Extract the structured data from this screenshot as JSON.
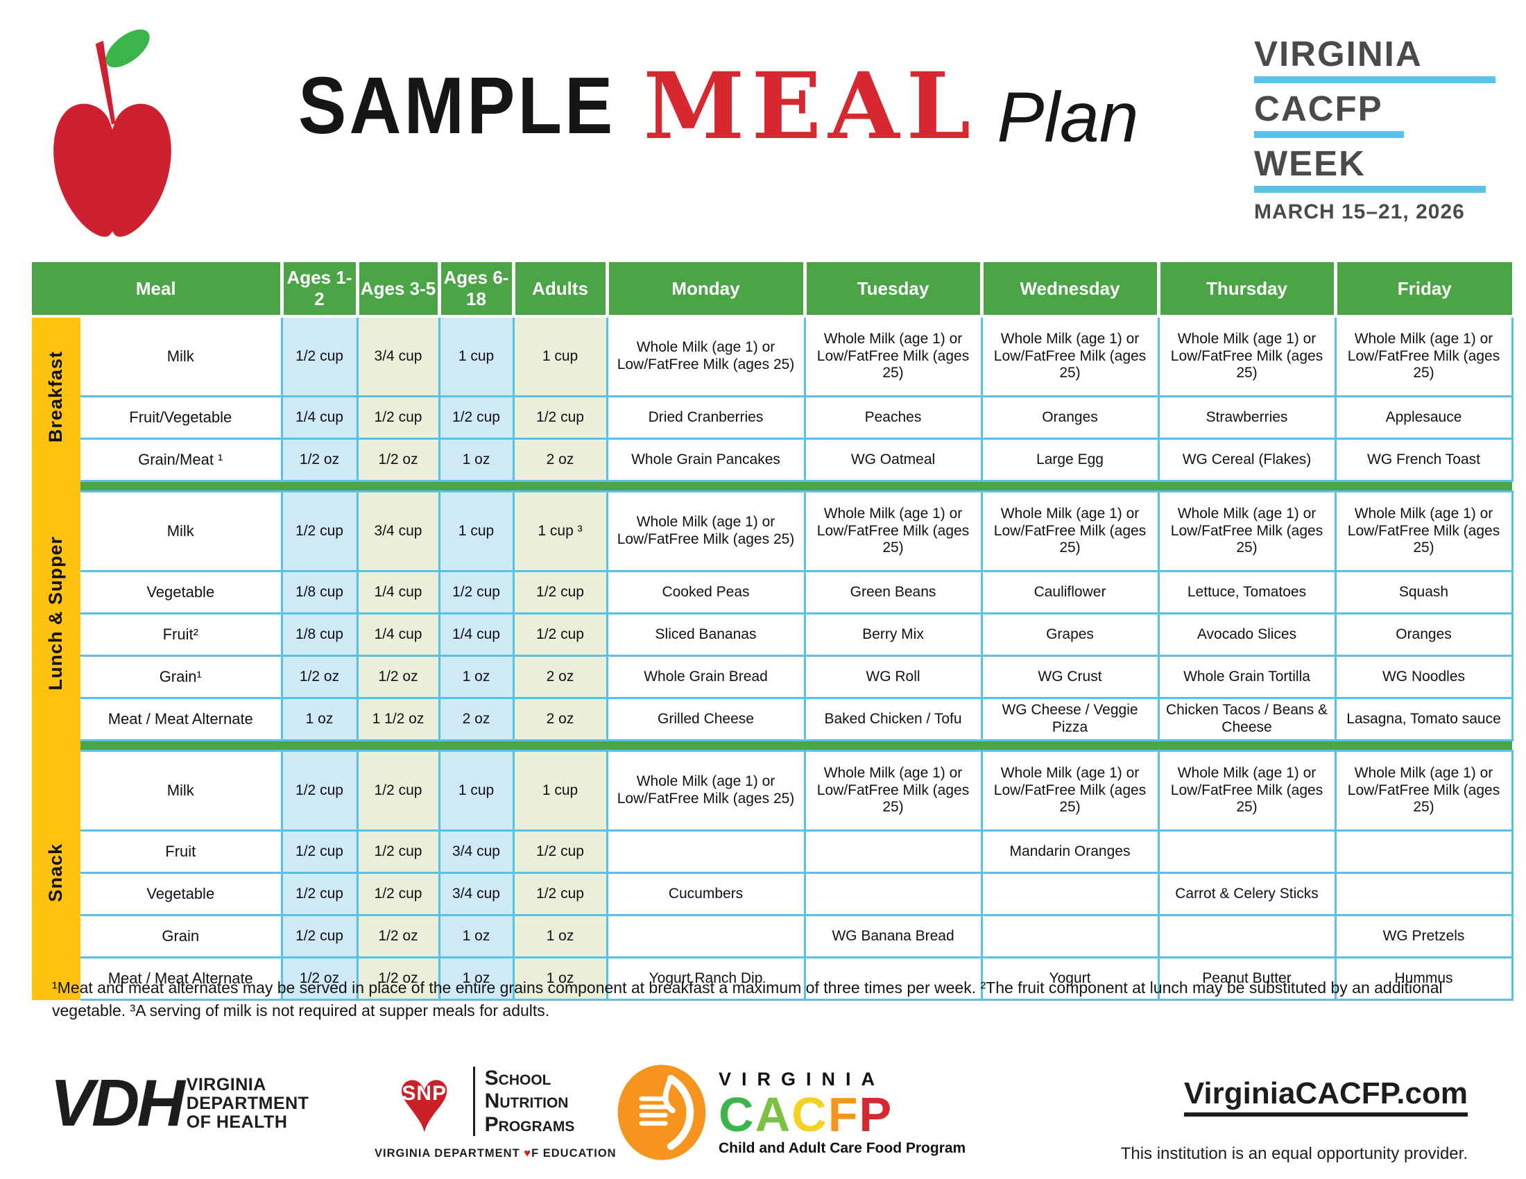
{
  "masthead": {
    "sample": "SAMPLE",
    "meal": "MEAL",
    "plan": "Plan",
    "week_logo": {
      "l1": "VIRGINIA",
      "l2": "CACFP",
      "l3": "WEEK",
      "date": "MARCH 15–21, 2026"
    }
  },
  "colors": {
    "header_green": "#4ba546",
    "stripe_yellow": "#ffc20e",
    "cell_blue": "#cfe9f6",
    "cell_green": "#e9efd8",
    "border_cyan": "#57c1e8",
    "accent_red": "#d7282f",
    "logo_gray": "#4a4a4c",
    "logo_light_blue": "#5bc3e9"
  },
  "table": {
    "columns": [
      "Meal",
      "Ages 1-2",
      "Ages 3-5",
      "Ages 6-18",
      "Adults",
      "Monday",
      "Tuesday",
      "Wednesday",
      "Thursday",
      "Friday"
    ],
    "sections": [
      {
        "label": "Breakfast",
        "rows": [
          {
            "meal": "Milk",
            "amounts": [
              "1/2 cup",
              "3/4 cup",
              "1 cup",
              "1 cup"
            ],
            "days": [
              "Whole Milk (age 1) or Low/FatFree Milk (ages 25)",
              "Whole Milk (age 1) or Low/FatFree Milk (ages 25)",
              "Whole Milk (age 1) or Low/FatFree Milk (ages 25)",
              "Whole Milk (age 1) or Low/FatFree Milk (ages 25)",
              "Whole Milk (age 1) or Low/FatFree Milk (ages 25)"
            ]
          },
          {
            "meal": "Fruit/Vegetable",
            "amounts": [
              "1/4 cup",
              "1/2 cup",
              "1/2 cup",
              "1/2 cup"
            ],
            "days": [
              "Dried Cranberries",
              "Peaches",
              "Oranges",
              "Strawberries",
              "Applesauce"
            ]
          },
          {
            "meal": "Grain/Meat ¹",
            "amounts": [
              "1/2 oz",
              "1/2 oz",
              "1 oz",
              "2 oz"
            ],
            "days": [
              "Whole Grain Pancakes",
              "WG Oatmeal",
              "Large Egg",
              "WG Cereal (Flakes)",
              "WG French Toast"
            ]
          }
        ]
      },
      {
        "label": "Lunch & Supper",
        "rows": [
          {
            "meal": "Milk",
            "amounts": [
              "1/2 cup",
              "3/4 cup",
              "1 cup",
              "1 cup ³"
            ],
            "days": [
              "Whole Milk (age 1) or Low/FatFree Milk (ages 25)",
              "Whole Milk (age 1) or Low/FatFree Milk (ages 25)",
              "Whole Milk (age 1) or Low/FatFree Milk (ages 25)",
              "Whole Milk (age 1) or Low/FatFree Milk (ages 25)",
              "Whole Milk (age 1) or Low/FatFree Milk (ages 25)"
            ]
          },
          {
            "meal": "Vegetable",
            "amounts": [
              "1/8 cup",
              "1/4 cup",
              "1/2 cup",
              "1/2 cup"
            ],
            "days": [
              "Cooked Peas",
              "Green Beans",
              "Cauliflower",
              "Lettuce, Tomatoes",
              "Squash"
            ]
          },
          {
            "meal": "Fruit²",
            "amounts": [
              "1/8 cup",
              "1/4 cup",
              "1/4 cup",
              "1/2 cup"
            ],
            "days": [
              "Sliced Bananas",
              "Berry Mix",
              "Grapes",
              "Avocado Slices",
              "Oranges"
            ]
          },
          {
            "meal": "Grain¹",
            "amounts": [
              "1/2 oz",
              "1/2 oz",
              "1 oz",
              "2 oz"
            ],
            "days": [
              "Whole Grain Bread",
              "WG Roll",
              "WG Crust",
              "Whole Grain Tortilla",
              "WG Noodles"
            ]
          },
          {
            "meal": "Meat / Meat Alternate",
            "amounts": [
              "1 oz",
              "1 1/2 oz",
              "2 oz",
              "2 oz"
            ],
            "days": [
              "Grilled Cheese",
              "Baked Chicken / Tofu",
              "WG Cheese / Veggie Pizza",
              "Chicken Tacos / Beans & Cheese",
              "Lasagna, Tomato sauce"
            ]
          }
        ]
      },
      {
        "label": "Snack",
        "rows": [
          {
            "meal": "Milk",
            "amounts": [
              "1/2 cup",
              "1/2 cup",
              "1 cup",
              "1 cup"
            ],
            "days": [
              "Whole Milk (age 1) or Low/FatFree Milk (ages 25)",
              "Whole Milk (age 1) or Low/FatFree Milk (ages 25)",
              "Whole Milk (age 1) or Low/FatFree Milk (ages 25)",
              "Whole Milk (age 1) or Low/FatFree Milk (ages 25)",
              "Whole Milk (age 1) or Low/FatFree Milk (ages 25)"
            ]
          },
          {
            "meal": "Fruit",
            "amounts": [
              "1/2 cup",
              "1/2 cup",
              "3/4 cup",
              "1/2 cup"
            ],
            "days": [
              "",
              "",
              "Mandarin Oranges",
              "",
              ""
            ]
          },
          {
            "meal": "Vegetable",
            "amounts": [
              "1/2 cup",
              "1/2 cup",
              "3/4 cup",
              "1/2 cup"
            ],
            "days": [
              "Cucumbers",
              "",
              "",
              "Carrot & Celery Sticks",
              ""
            ]
          },
          {
            "meal": "Grain",
            "amounts": [
              "1/2 cup",
              "1/2 oz",
              "1 oz",
              "1 oz"
            ],
            "days": [
              "",
              "WG Banana Bread",
              "",
              "",
              "WG Pretzels"
            ]
          },
          {
            "meal": "Meat / Meat Alternate",
            "amounts": [
              "1/2 oz",
              "1/2 oz",
              "1 oz",
              "1 oz"
            ],
            "days": [
              "Yogurt Ranch Dip",
              "",
              "Yogurt",
              "Peanut Butter",
              "Hummus"
            ]
          }
        ]
      }
    ]
  },
  "footnote": "¹Meat and meat alternates may be served in place of the entire grains component at breakfast a maximum of three times per week. ²The fruit component at lunch may be substituted by an additional vegetable. ³A serving of milk is not required at supper meals for adults.",
  "footer": {
    "vdh": {
      "abbr": "VDH",
      "l1": "VIRGINIA",
      "l2": "DEPARTMENT",
      "l3": "OF HEALTH"
    },
    "snp": {
      "abbr": "SNP",
      "l1": "School",
      "l2": "Nutrition",
      "l3": "Programs",
      "sub1": "VIRGINIA DEPARTMENT ",
      "heart": "♥",
      "sub2": "F EDUCATION"
    },
    "cacfp": {
      "virginia": "VIRGINIA",
      "letters": [
        {
          "ch": "C",
          "color": "#3cb54a"
        },
        {
          "ch": "A",
          "color": "#7ac143"
        },
        {
          "ch": "C",
          "color": "#f5d120"
        },
        {
          "ch": "F",
          "color": "#f7941d"
        },
        {
          "ch": "P",
          "color": "#d7282f"
        }
      ],
      "sub": "Child and Adult Care Food Program"
    },
    "website": "VirginiaCACFP.com",
    "eeo": "This institution is an equal opportunity provider."
  }
}
